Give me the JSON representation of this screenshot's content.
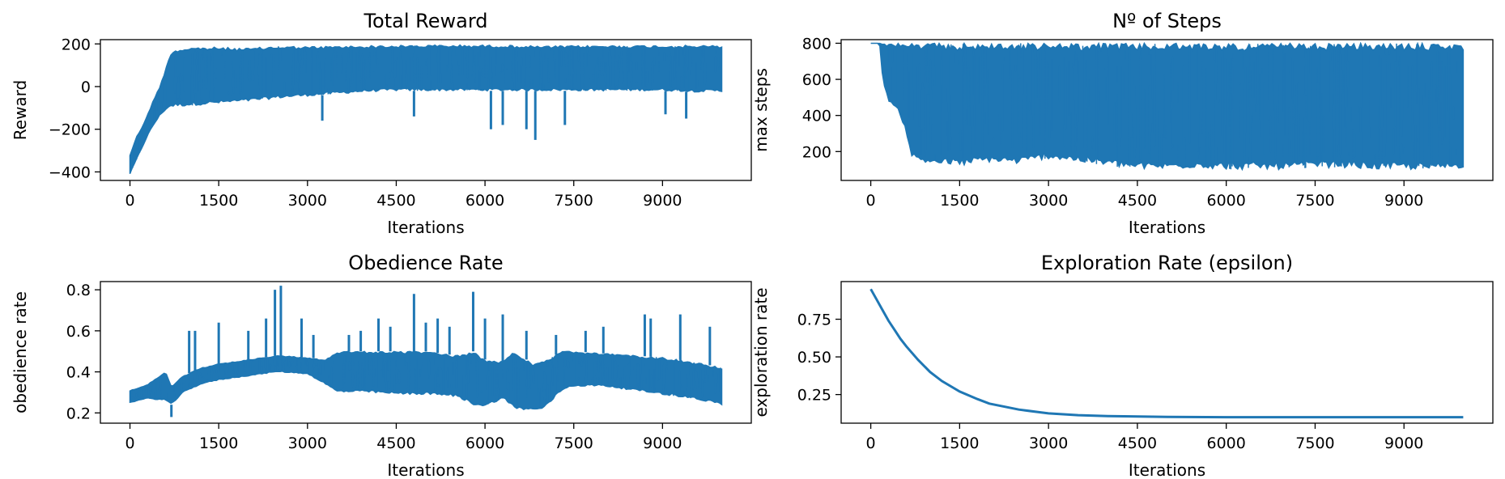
{
  "figure": {
    "series_color": "#1f77b4"
  },
  "chart_data": [
    {
      "type": "line",
      "title": "Total Reward",
      "xlabel": "Iterations",
      "ylabel": "Reward",
      "xlim": [
        -500,
        10500
      ],
      "ylim": [
        -440,
        220
      ],
      "xticks": [
        0,
        1500,
        3000,
        4500,
        6000,
        7500,
        9000
      ],
      "yticks": [
        -400,
        -200,
        0,
        200
      ],
      "ytick_labels": [
        "−400",
        "−200",
        "0",
        "200"
      ],
      "band": {
        "x": [
          0,
          100,
          200,
          300,
          400,
          500,
          600,
          700,
          1000,
          1500,
          2000,
          2500,
          3000,
          3500,
          4000,
          4500,
          5000,
          5500,
          6000,
          6500,
          7000,
          7500,
          8000,
          8500,
          9000,
          9500,
          10000
        ],
        "upper": [
          -320,
          -240,
          -190,
          -130,
          -60,
          0,
          80,
          170,
          185,
          185,
          180,
          190,
          188,
          190,
          192,
          193,
          195,
          195,
          195,
          193,
          190,
          192,
          193,
          193,
          193,
          193,
          193
        ],
        "lower": [
          -410,
          -350,
          -290,
          -230,
          -180,
          -140,
          -110,
          -95,
          -90,
          -80,
          -70,
          -55,
          -45,
          -35,
          -25,
          -20,
          -20,
          -20,
          -20,
          -20,
          -20,
          -20,
          -20,
          -20,
          -20,
          -25,
          -25
        ]
      },
      "spikes": [
        {
          "x": 3250,
          "y": -160
        },
        {
          "x": 4800,
          "y": -140
        },
        {
          "x": 6100,
          "y": -200
        },
        {
          "x": 6300,
          "y": -180
        },
        {
          "x": 6700,
          "y": -200
        },
        {
          "x": 6850,
          "y": -250
        },
        {
          "x": 7350,
          "y": -180
        },
        {
          "x": 9050,
          "y": -130
        },
        {
          "x": 9400,
          "y": -150
        }
      ]
    },
    {
      "type": "line",
      "title": "Nº of Steps",
      "xlabel": "Iterations",
      "ylabel": "max steps",
      "xlim": [
        -500,
        10500
      ],
      "ylim": [
        40,
        820
      ],
      "xticks": [
        0,
        1500,
        3000,
        4500,
        6000,
        7500,
        9000
      ],
      "yticks": [
        200,
        400,
        600,
        800
      ],
      "ytick_labels": [
        "200",
        "400",
        "600",
        "800"
      ],
      "band": {
        "x": [
          0,
          150,
          200,
          300,
          500,
          600,
          700,
          800,
          1000,
          1500,
          2000,
          2500,
          3000,
          3500,
          4000,
          4500,
          5000,
          5500,
          6000,
          6500,
          7000,
          7500,
          8000,
          8500,
          9000,
          9500,
          10000
        ],
        "upper": [
          800,
          800,
          800,
          800,
          800,
          800,
          800,
          800,
          800,
          800,
          800,
          800,
          800,
          800,
          800,
          800,
          800,
          800,
          800,
          800,
          800,
          800,
          800,
          800,
          800,
          800,
          800
        ],
        "lower": [
          800,
          800,
          600,
          480,
          400,
          300,
          160,
          140,
          130,
          120,
          140,
          130,
          160,
          140,
          120,
          100,
          100,
          110,
          100,
          100,
          100,
          110,
          110,
          100,
          100,
          95,
          110
        ]
      },
      "spikes": []
    },
    {
      "type": "line",
      "title": "Obedience Rate",
      "xlabel": "Iterations",
      "ylabel": "obedience rate",
      "xlim": [
        -500,
        10500
      ],
      "ylim": [
        0.15,
        0.84
      ],
      "xticks": [
        0,
        1500,
        3000,
        4500,
        6000,
        7500,
        9000
      ],
      "yticks": [
        0.2,
        0.4,
        0.6,
        0.8
      ],
      "ytick_labels": [
        "0.2",
        "0.4",
        "0.6",
        "0.8"
      ],
      "band": {
        "x": [
          0,
          300,
          600,
          700,
          900,
          1200,
          1500,
          2000,
          2500,
          3000,
          3300,
          3500,
          4000,
          4500,
          5000,
          5500,
          5800,
          6000,
          6300,
          6500,
          6800,
          7000,
          7300,
          7500,
          8000,
          8500,
          9000,
          9500,
          10000
        ],
        "upper": [
          0.31,
          0.34,
          0.4,
          0.33,
          0.38,
          0.42,
          0.44,
          0.46,
          0.48,
          0.47,
          0.46,
          0.5,
          0.5,
          0.5,
          0.5,
          0.48,
          0.5,
          0.46,
          0.45,
          0.5,
          0.44,
          0.45,
          0.5,
          0.5,
          0.49,
          0.48,
          0.47,
          0.45,
          0.42
        ],
        "lower": [
          0.25,
          0.27,
          0.26,
          0.24,
          0.3,
          0.34,
          0.36,
          0.38,
          0.4,
          0.39,
          0.34,
          0.3,
          0.3,
          0.29,
          0.29,
          0.28,
          0.24,
          0.23,
          0.27,
          0.22,
          0.21,
          0.22,
          0.31,
          0.33,
          0.33,
          0.31,
          0.29,
          0.27,
          0.24
        ]
      },
      "spikes": [
        {
          "x": 700,
          "y": 0.18
        },
        {
          "x": 1000,
          "y": 0.6
        },
        {
          "x": 1100,
          "y": 0.6
        },
        {
          "x": 1500,
          "y": 0.64
        },
        {
          "x": 2000,
          "y": 0.6
        },
        {
          "x": 2300,
          "y": 0.66
        },
        {
          "x": 2450,
          "y": 0.8
        },
        {
          "x": 2550,
          "y": 0.82
        },
        {
          "x": 2900,
          "y": 0.66
        },
        {
          "x": 3100,
          "y": 0.58
        },
        {
          "x": 3700,
          "y": 0.58
        },
        {
          "x": 3900,
          "y": 0.6
        },
        {
          "x": 4200,
          "y": 0.66
        },
        {
          "x": 4400,
          "y": 0.62
        },
        {
          "x": 4800,
          "y": 0.78
        },
        {
          "x": 5000,
          "y": 0.64
        },
        {
          "x": 5200,
          "y": 0.66
        },
        {
          "x": 5400,
          "y": 0.62
        },
        {
          "x": 5800,
          "y": 0.79
        },
        {
          "x": 6000,
          "y": 0.66
        },
        {
          "x": 6300,
          "y": 0.68
        },
        {
          "x": 6700,
          "y": 0.6
        },
        {
          "x": 7200,
          "y": 0.58
        },
        {
          "x": 7700,
          "y": 0.6
        },
        {
          "x": 8000,
          "y": 0.62
        },
        {
          "x": 8700,
          "y": 0.68
        },
        {
          "x": 8800,
          "y": 0.66
        },
        {
          "x": 9300,
          "y": 0.68
        },
        {
          "x": 9800,
          "y": 0.62
        }
      ]
    },
    {
      "type": "line",
      "title": "Exploration Rate (epsilon)",
      "xlabel": "Iterations",
      "ylabel": "exploration rate",
      "xlim": [
        -500,
        10500
      ],
      "ylim": [
        0.06,
        1.0
      ],
      "xticks": [
        0,
        1500,
        3000,
        4500,
        6000,
        7500,
        9000
      ],
      "yticks": [
        0.25,
        0.5,
        0.75
      ],
      "ytick_labels": [
        "0.25",
        "0.50",
        "0.75"
      ],
      "line": {
        "x": [
          0,
          100,
          200,
          300,
          400,
          500,
          600,
          800,
          1000,
          1200,
          1500,
          1800,
          2000,
          2500,
          3000,
          3500,
          4000,
          5000,
          6000,
          7000,
          8000,
          9000,
          10000
        ],
        "y": [
          0.95,
          0.88,
          0.81,
          0.74,
          0.68,
          0.62,
          0.57,
          0.48,
          0.4,
          0.34,
          0.27,
          0.22,
          0.19,
          0.15,
          0.125,
          0.113,
          0.107,
          0.102,
          0.1,
          0.1,
          0.1,
          0.1,
          0.1
        ]
      }
    }
  ]
}
